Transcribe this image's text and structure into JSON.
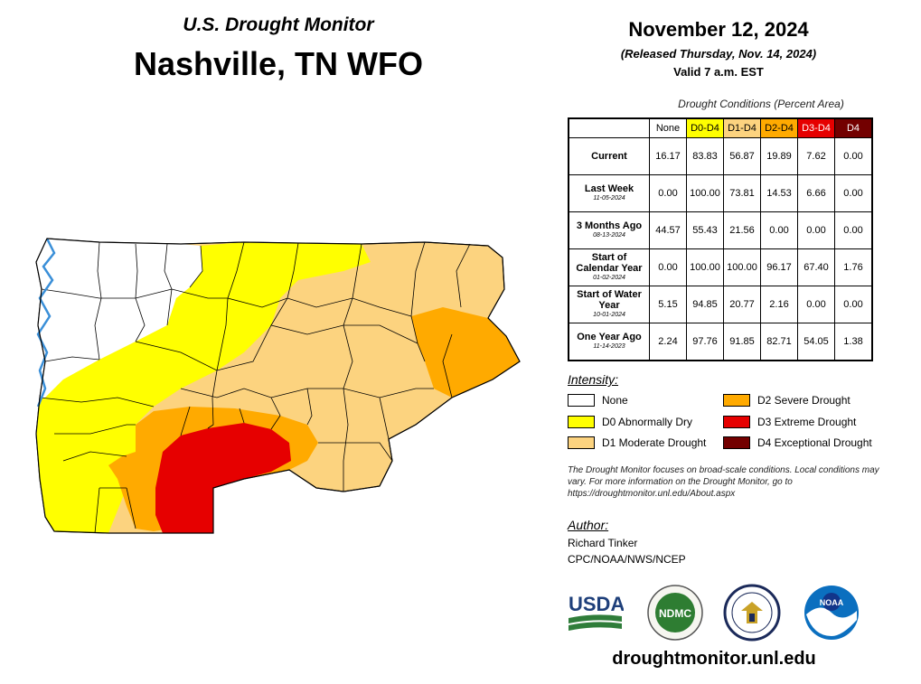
{
  "header": {
    "subtitle": "U.S. Drought Monitor",
    "title": "Nashville, TN WFO",
    "date": "November 12, 2024",
    "released": "(Released Thursday, Nov. 14, 2024)",
    "valid": "Valid 7 a.m. EST"
  },
  "table": {
    "caption": "Drought Conditions (Percent Area)",
    "columns": [
      {
        "label": "None",
        "color": "#ffffff",
        "text_color": "#000000"
      },
      {
        "label": "D0-D4",
        "color": "#ffff00",
        "text_color": "#000000"
      },
      {
        "label": "D1-D4",
        "color": "#fcd37f",
        "text_color": "#000000"
      },
      {
        "label": "D2-D4",
        "color": "#ffaa00",
        "text_color": "#000000"
      },
      {
        "label": "D3-D4",
        "color": "#e60000",
        "text_color": "#ffffff"
      },
      {
        "label": "D4",
        "color": "#730000",
        "text_color": "#ffffff"
      }
    ],
    "rows": [
      {
        "label": "Current",
        "date": "",
        "values": [
          "16.17",
          "83.83",
          "56.87",
          "19.89",
          "7.62",
          "0.00"
        ]
      },
      {
        "label": "Last Week",
        "date": "11-05-2024",
        "values": [
          "0.00",
          "100.00",
          "73.81",
          "14.53",
          "6.66",
          "0.00"
        ]
      },
      {
        "label": "3 Months Ago",
        "date": "08-13-2024",
        "values": [
          "44.57",
          "55.43",
          "21.56",
          "0.00",
          "0.00",
          "0.00"
        ]
      },
      {
        "label": "Start of Calendar Year",
        "date": "01-02-2024",
        "values": [
          "0.00",
          "100.00",
          "100.00",
          "96.17",
          "67.40",
          "1.76"
        ]
      },
      {
        "label": "Start of Water Year",
        "date": "10-01-2024",
        "values": [
          "5.15",
          "94.85",
          "20.77",
          "2.16",
          "0.00",
          "0.00"
        ]
      },
      {
        "label": "One Year Ago",
        "date": "11-14-2023",
        "values": [
          "2.24",
          "97.76",
          "91.85",
          "82.71",
          "54.05",
          "1.38"
        ]
      }
    ]
  },
  "legend": {
    "title": "Intensity:",
    "items": [
      {
        "label": "None",
        "color": "#ffffff"
      },
      {
        "label": "D0 Abnormally Dry",
        "color": "#ffff00"
      },
      {
        "label": "D1 Moderate Drought",
        "color": "#fcd37f"
      },
      {
        "label": "D2 Severe Drought",
        "color": "#ffaa00"
      },
      {
        "label": "D3 Extreme Drought",
        "color": "#e60000"
      },
      {
        "label": "D4 Exceptional Drought",
        "color": "#730000"
      }
    ]
  },
  "note": "The Drought Monitor focuses on broad-scale conditions. Local conditions may vary. For more information on the Drought Monitor, go to https://droughtmonitor.unl.edu/About.aspx",
  "author": {
    "title": "Author:",
    "name": "Richard Tinker",
    "org": "CPC/NOAA/NWS/NCEP"
  },
  "logos": {
    "usda": "USDA",
    "ndmc": "NDMC",
    "noaa": "NOAA"
  },
  "website": "droughtmonitor.unl.edu",
  "map": {
    "colors": {
      "none": "#ffffff",
      "d0": "#ffff00",
      "d1": "#fcd37f",
      "d2": "#ffaa00",
      "d3": "#e60000",
      "water": "#3a8fd8",
      "border": "#000000"
    }
  }
}
